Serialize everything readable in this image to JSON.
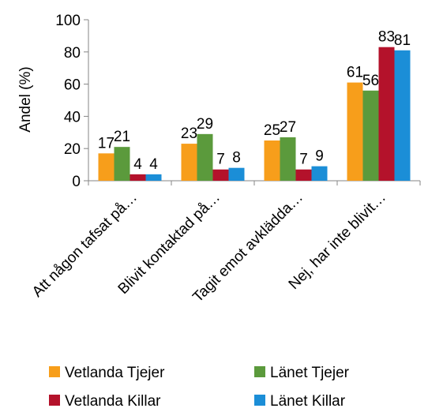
{
  "chart_data": {
    "type": "bar",
    "ylabel": "Andel (%)",
    "ylim": [
      0,
      100
    ],
    "yticks": [
      0,
      20,
      40,
      60,
      80,
      100
    ],
    "grid": false,
    "legend_position": "bottom",
    "categories": [
      "Att någon tafsat på…",
      "Blivit kontaktad på…",
      "Tagit emot avklädda…",
      "Nej, har inte blivit…"
    ],
    "series": [
      {
        "name": "Vetlanda Tjejer",
        "color": "#F79E1B",
        "values": [
          17,
          23,
          25,
          61
        ]
      },
      {
        "name": "Länet Tjejer",
        "color": "#5B9A3C",
        "values": [
          21,
          29,
          27,
          56
        ]
      },
      {
        "name": "Vetlanda Killar",
        "color": "#B4122B",
        "values": [
          4,
          7,
          7,
          83
        ]
      },
      {
        "name": "Länet Killar",
        "color": "#1B8ED7",
        "values": [
          4,
          8,
          9,
          81
        ]
      }
    ]
  }
}
